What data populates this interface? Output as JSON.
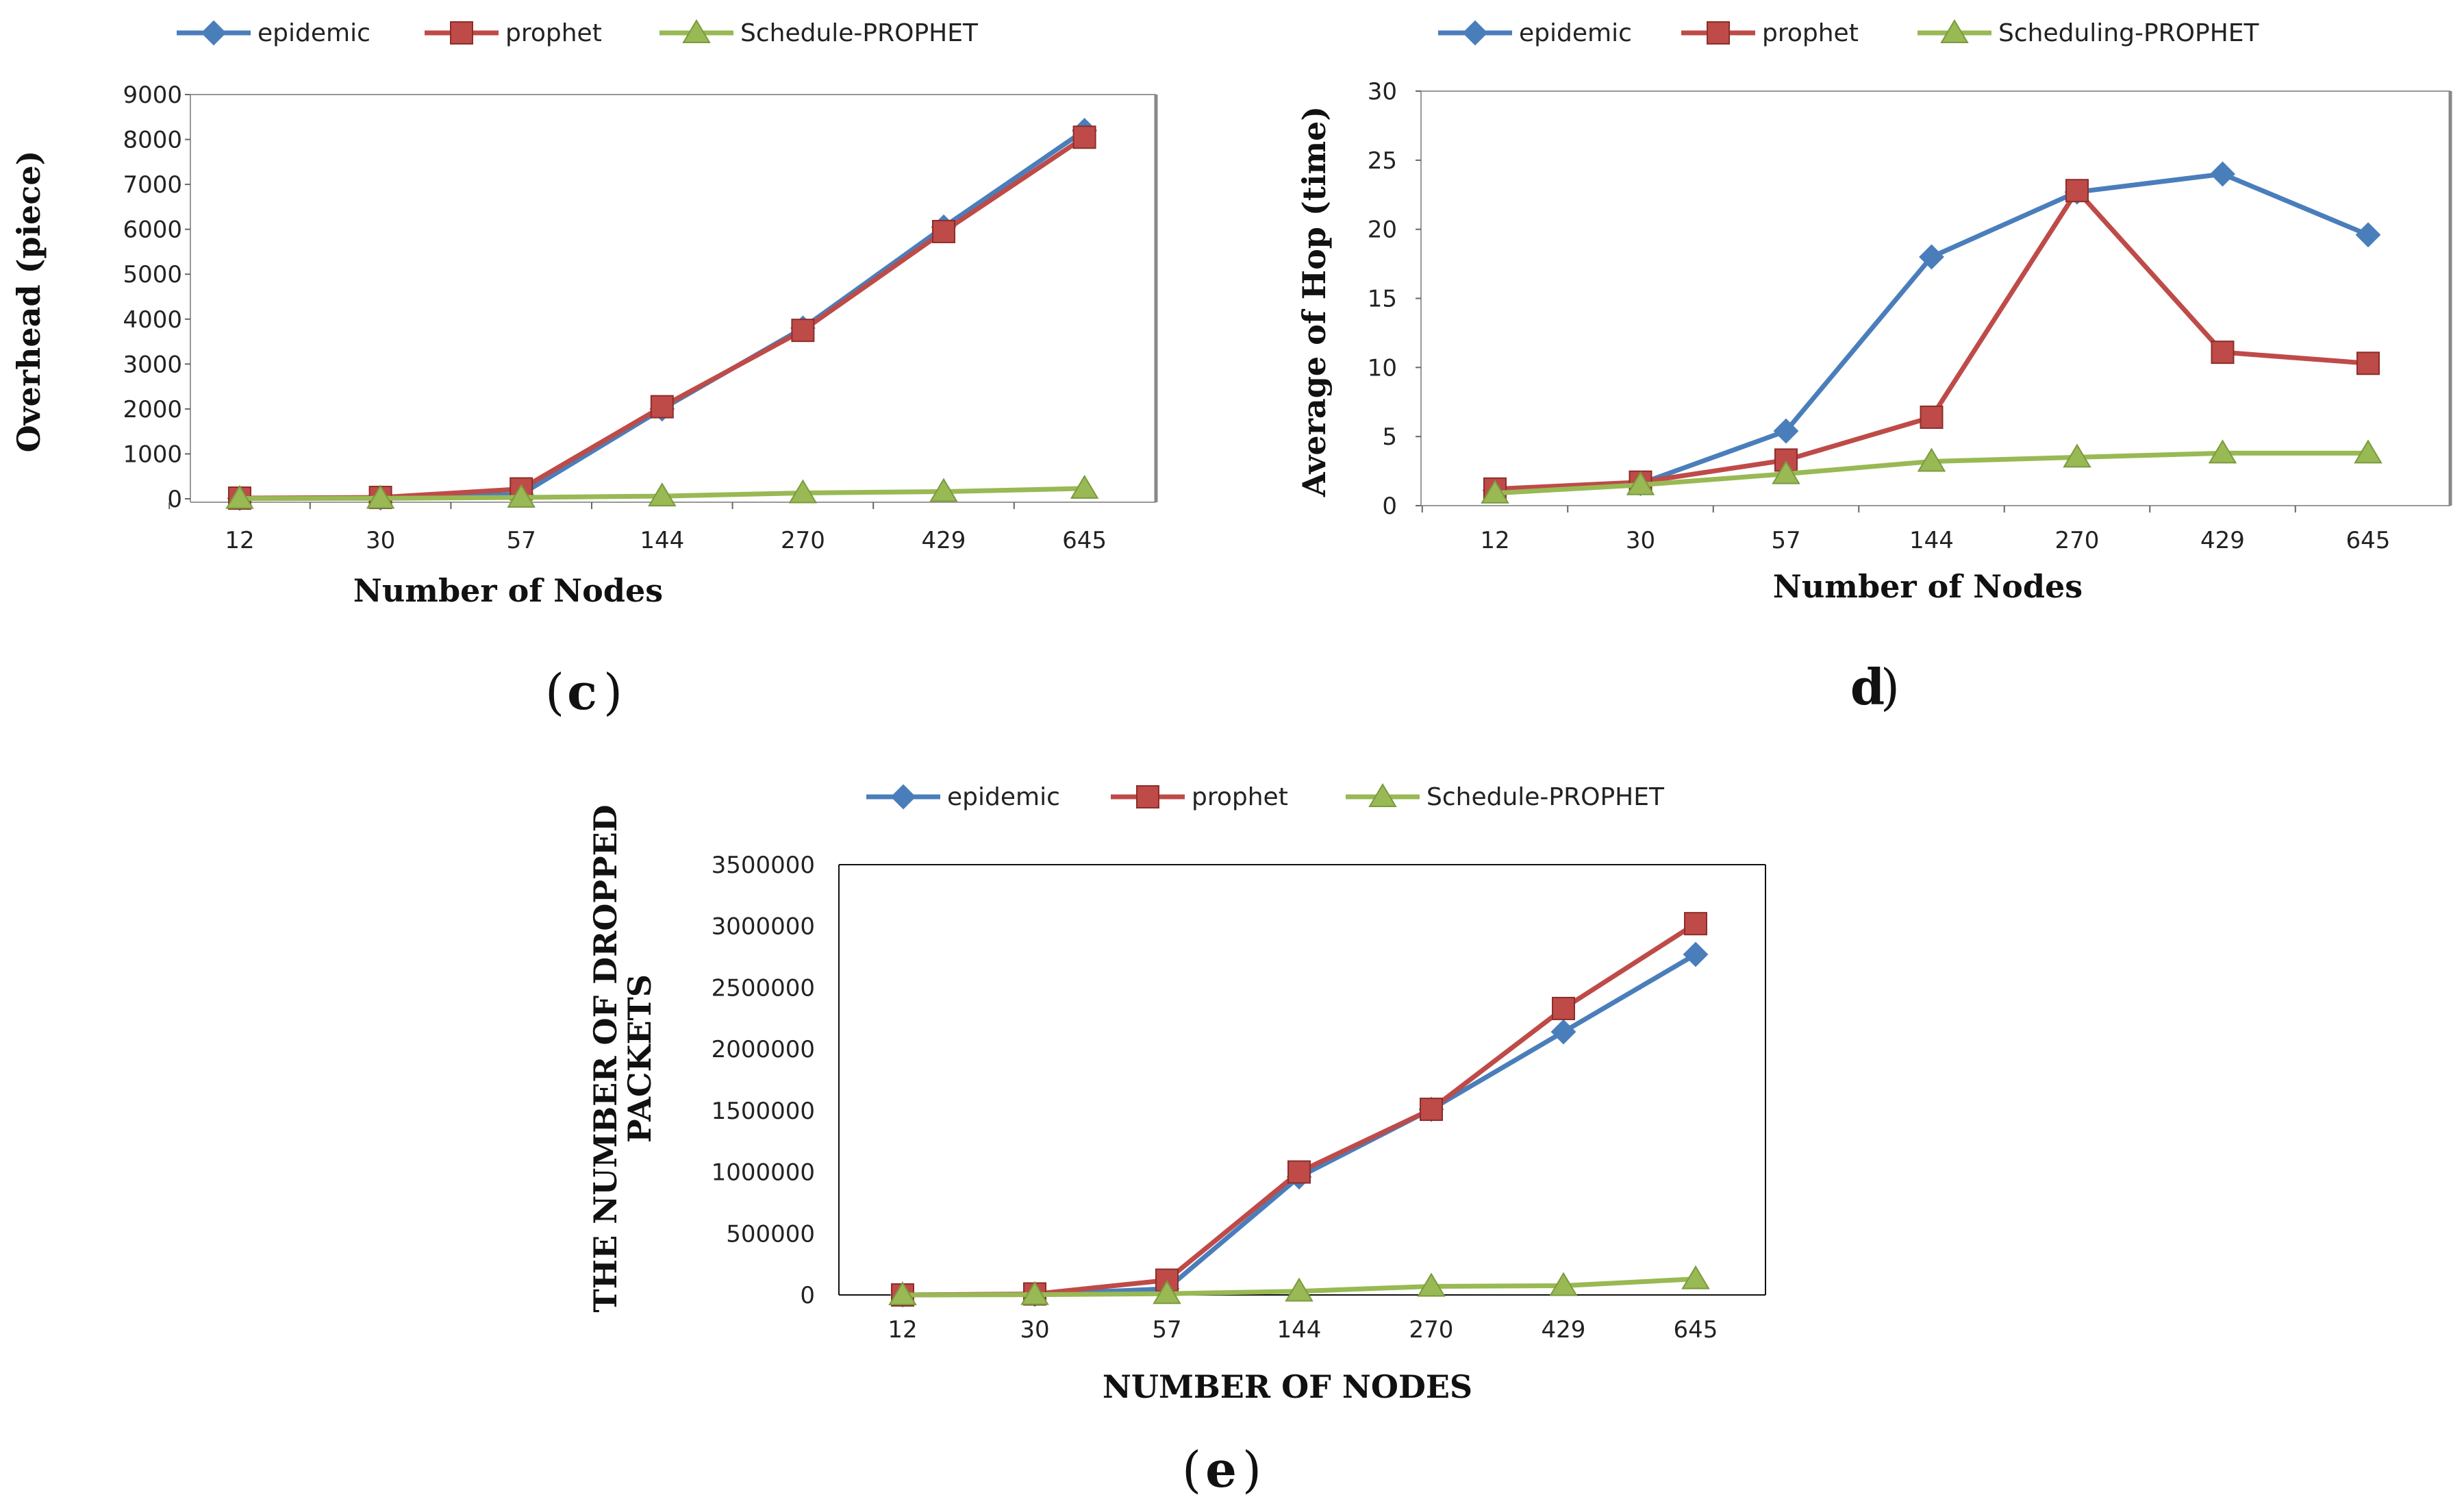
{
  "chart_data": [
    {
      "id": "c",
      "type": "line",
      "panel_label": [
        "(",
        "c",
        ")"
      ],
      "categories": [
        "12",
        "30",
        "57",
        "144",
        "270",
        "429",
        "645"
      ],
      "ylabel": "Overhead (piece)",
      "xlabel": "Number of Nodes",
      "ylim": [
        0,
        9000
      ],
      "yticks": [
        0,
        1000,
        2000,
        3000,
        4000,
        5000,
        6000,
        7000,
        8000,
        9000
      ],
      "legend": "top",
      "series": [
        {
          "name": "epidemic",
          "color": "#4a7ebb",
          "marker": "diamond",
          "values": [
            10,
            20,
            100,
            2000,
            3800,
            6050,
            8200
          ]
        },
        {
          "name": "prophet",
          "color": "#be4b48",
          "marker": "square",
          "values": [
            15,
            30,
            220,
            2050,
            3750,
            5950,
            8050
          ]
        },
        {
          "name": "Schedule-PROPHET",
          "color": "#98b954",
          "marker": "triangle",
          "values": [
            5,
            10,
            30,
            60,
            130,
            160,
            230
          ]
        }
      ]
    },
    {
      "id": "d",
      "type": "line",
      "panel_label": [
        "",
        "d",
        ")"
      ],
      "categories": [
        "12",
        "30",
        "57",
        "144",
        "270",
        "429",
        "645"
      ],
      "ylabel": "Average of Hop (time)",
      "xlabel": "Number of Nodes",
      "ylim": [
        0,
        30
      ],
      "yticks": [
        0,
        5,
        10,
        15,
        20,
        25,
        30
      ],
      "legend": "top",
      "series": [
        {
          "name": "epidemic",
          "color": "#4a7ebb",
          "marker": "diamond",
          "values": [
            1.1,
            1.6,
            5.4,
            18,
            22.7,
            24,
            19.6
          ]
        },
        {
          "name": "prophet",
          "color": "#be4b48",
          "marker": "square",
          "values": [
            1.2,
            1.7,
            3.3,
            6.4,
            22.8,
            11.1,
            10.3
          ]
        },
        {
          "name": "Scheduling-PROPHET",
          "color": "#98b954",
          "marker": "triangle",
          "values": [
            0.9,
            1.5,
            2.3,
            3.2,
            3.5,
            3.8,
            3.8
          ]
        }
      ]
    },
    {
      "id": "e",
      "type": "line",
      "panel_label": [
        "(",
        "e",
        ")"
      ],
      "categories": [
        "12",
        "30",
        "57",
        "144",
        "270",
        "429",
        "645"
      ],
      "ylabel": [
        "THE NUMBER OF DROPPED",
        "PACKETS"
      ],
      "xlabel": "NUMBER OF NODES",
      "ylim": [
        0,
        3500000
      ],
      "yticks": [
        0,
        500000,
        1000000,
        1500000,
        2000000,
        2500000,
        3000000,
        3500000
      ],
      "legend": "top",
      "series": [
        {
          "name": "epidemic",
          "color": "#4a7ebb",
          "marker": "diamond",
          "values": [
            0,
            5000,
            50000,
            960000,
            1510000,
            2140000,
            2770000
          ]
        },
        {
          "name": "prophet",
          "color": "#be4b48",
          "marker": "square",
          "values": [
            0,
            8000,
            120000,
            1000000,
            1510000,
            2330000,
            3020000
          ]
        },
        {
          "name": "Schedule-PROPHET",
          "color": "#98b954",
          "marker": "triangle",
          "values": [
            0,
            2000,
            10000,
            30000,
            70000,
            75000,
            130000
          ]
        }
      ]
    }
  ]
}
